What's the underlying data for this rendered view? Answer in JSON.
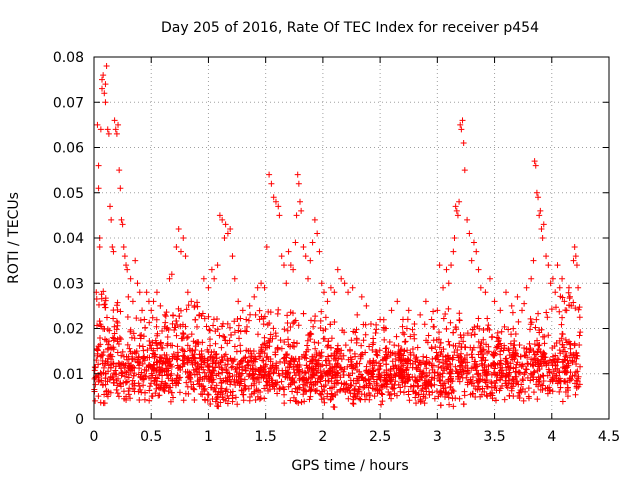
{
  "chart_data": {
    "type": "scatter",
    "title": "Day 205 of 2016, Rate Of TEC Index for receiver p454",
    "xlabel": "GPS time / hours",
    "ylabel": "ROTI / TECUs",
    "xlim": [
      0,
      4.5
    ],
    "ylim": [
      0,
      0.08
    ],
    "x_ticks": [
      0,
      0.5,
      1,
      1.5,
      2,
      2.5,
      3,
      3.5,
      4,
      4.5
    ],
    "x_tick_labels": [
      "0",
      "0.5",
      "1",
      "1.5",
      "2",
      "2.5",
      "3",
      "3.5",
      "4",
      "4.5"
    ],
    "y_ticks": [
      0,
      0.01,
      0.02,
      0.03,
      0.04,
      0.05,
      0.06,
      0.07,
      0.08
    ],
    "y_tick_labels": [
      "0",
      "0.01",
      "0.02",
      "0.03",
      "0.04",
      "0.05",
      "0.06",
      "0.07",
      "0.08"
    ],
    "grid": true,
    "marker": "+",
    "series": [
      {
        "name": "ROTI",
        "color": "#ff0000",
        "points": [
          [
            0.01,
            0.004
          ],
          [
            0.02,
            0.013
          ],
          [
            0.02,
            0.028
          ],
          [
            0.03,
            0.065
          ],
          [
            0.04,
            0.056
          ],
          [
            0.04,
            0.051
          ],
          [
            0.05,
            0.04
          ],
          [
            0.05,
            0.038
          ],
          [
            0.06,
            0.064
          ],
          [
            0.07,
            0.075
          ],
          [
            0.07,
            0.073
          ],
          [
            0.08,
            0.076
          ],
          [
            0.09,
            0.072
          ],
          [
            0.1,
            0.074
          ],
          [
            0.1,
            0.07
          ],
          [
            0.11,
            0.078
          ],
          [
            0.12,
            0.064
          ],
          [
            0.13,
            0.063
          ],
          [
            0.14,
            0.047
          ],
          [
            0.15,
            0.044
          ],
          [
            0.16,
            0.038
          ],
          [
            0.17,
            0.037
          ],
          [
            0.18,
            0.066
          ],
          [
            0.19,
            0.064
          ],
          [
            0.2,
            0.063
          ],
          [
            0.21,
            0.065
          ],
          [
            0.22,
            0.055
          ],
          [
            0.23,
            0.051
          ],
          [
            0.24,
            0.044
          ],
          [
            0.25,
            0.043
          ],
          [
            0.26,
            0.038
          ],
          [
            0.27,
            0.036
          ],
          [
            0.28,
            0.034
          ],
          [
            0.29,
            0.033
          ],
          [
            0.3,
            0.027
          ],
          [
            0.32,
            0.031
          ],
          [
            0.34,
            0.026
          ],
          [
            0.36,
            0.035
          ],
          [
            0.38,
            0.03
          ],
          [
            0.4,
            0.028
          ],
          [
            0.42,
            0.024
          ],
          [
            0.44,
            0.022
          ],
          [
            0.46,
            0.028
          ],
          [
            0.48,
            0.026
          ],
          [
            0.5,
            0.024
          ],
          [
            0.52,
            0.026
          ],
          [
            0.55,
            0.028
          ],
          [
            0.58,
            0.025
          ],
          [
            0.62,
            0.023
          ],
          [
            0.66,
            0.031
          ],
          [
            0.68,
            0.032
          ],
          [
            0.72,
            0.038
          ],
          [
            0.74,
            0.042
          ],
          [
            0.76,
            0.037
          ],
          [
            0.78,
            0.04
          ],
          [
            0.8,
            0.036
          ],
          [
            0.82,
            0.028
          ],
          [
            0.85,
            0.026
          ],
          [
            0.88,
            0.025
          ],
          [
            0.92,
            0.023
          ],
          [
            0.96,
            0.031
          ],
          [
            1.0,
            0.029
          ],
          [
            1.03,
            0.033
          ],
          [
            1.05,
            0.031
          ],
          [
            1.08,
            0.034
          ],
          [
            1.1,
            0.045
          ],
          [
            1.12,
            0.044
          ],
          [
            1.14,
            0.04
          ],
          [
            1.15,
            0.043
          ],
          [
            1.17,
            0.041
          ],
          [
            1.19,
            0.042
          ],
          [
            1.21,
            0.036
          ],
          [
            1.23,
            0.031
          ],
          [
            1.26,
            0.026
          ],
          [
            1.3,
            0.024
          ],
          [
            1.33,
            0.022
          ],
          [
            1.36,
            0.025
          ],
          [
            1.4,
            0.027
          ],
          [
            1.43,
            0.029
          ],
          [
            1.46,
            0.03
          ],
          [
            1.49,
            0.029
          ],
          [
            1.51,
            0.038
          ],
          [
            1.53,
            0.054
          ],
          [
            1.55,
            0.052
          ],
          [
            1.57,
            0.049
          ],
          [
            1.59,
            0.048
          ],
          [
            1.61,
            0.047
          ],
          [
            1.62,
            0.045
          ],
          [
            1.64,
            0.036
          ],
          [
            1.66,
            0.034
          ],
          [
            1.68,
            0.03
          ],
          [
            1.7,
            0.037
          ],
          [
            1.72,
            0.034
          ],
          [
            1.74,
            0.033
          ],
          [
            1.76,
            0.039
          ],
          [
            1.77,
            0.045
          ],
          [
            1.78,
            0.054
          ],
          [
            1.79,
            0.052
          ],
          [
            1.8,
            0.048
          ],
          [
            1.81,
            0.046
          ],
          [
            1.83,
            0.038
          ],
          [
            1.85,
            0.036
          ],
          [
            1.87,
            0.031
          ],
          [
            1.89,
            0.035
          ],
          [
            1.91,
            0.039
          ],
          [
            1.93,
            0.044
          ],
          [
            1.95,
            0.041
          ],
          [
            1.97,
            0.037
          ],
          [
            1.99,
            0.03
          ],
          [
            2.01,
            0.028
          ],
          [
            2.04,
            0.026
          ],
          [
            2.07,
            0.029
          ],
          [
            2.1,
            0.028
          ],
          [
            2.13,
            0.033
          ],
          [
            2.16,
            0.031
          ],
          [
            2.19,
            0.03
          ],
          [
            2.22,
            0.028
          ],
          [
            2.26,
            0.029
          ],
          [
            2.3,
            0.023
          ],
          [
            2.34,
            0.027
          ],
          [
            2.38,
            0.025
          ],
          [
            2.42,
            0.021
          ],
          [
            2.46,
            0.019
          ],
          [
            2.5,
            0.022
          ],
          [
            2.55,
            0.02
          ],
          [
            2.6,
            0.024
          ],
          [
            2.65,
            0.026
          ],
          [
            2.7,
            0.022
          ],
          [
            2.75,
            0.024
          ],
          [
            2.8,
            0.021
          ],
          [
            2.85,
            0.023
          ],
          [
            2.9,
            0.026
          ],
          [
            2.95,
            0.022
          ],
          [
            3.0,
            0.024
          ],
          [
            3.02,
            0.034
          ],
          [
            3.05,
            0.029
          ],
          [
            3.08,
            0.033
          ],
          [
            3.1,
            0.03
          ],
          [
            3.12,
            0.034
          ],
          [
            3.14,
            0.037
          ],
          [
            3.15,
            0.04
          ],
          [
            3.16,
            0.047
          ],
          [
            3.17,
            0.046
          ],
          [
            3.18,
            0.045
          ],
          [
            3.19,
            0.048
          ],
          [
            3.2,
            0.065
          ],
          [
            3.21,
            0.064
          ],
          [
            3.22,
            0.066
          ],
          [
            3.23,
            0.061
          ],
          [
            3.24,
            0.055
          ],
          [
            3.26,
            0.044
          ],
          [
            3.28,
            0.041
          ],
          [
            3.3,
            0.035
          ],
          [
            3.32,
            0.039
          ],
          [
            3.34,
            0.037
          ],
          [
            3.36,
            0.033
          ],
          [
            3.38,
            0.029
          ],
          [
            3.42,
            0.028
          ],
          [
            3.46,
            0.031
          ],
          [
            3.5,
            0.026
          ],
          [
            3.55,
            0.024
          ],
          [
            3.6,
            0.028
          ],
          [
            3.65,
            0.025
          ],
          [
            3.7,
            0.027
          ],
          [
            3.74,
            0.024
          ],
          [
            3.78,
            0.029
          ],
          [
            3.82,
            0.031
          ],
          [
            3.84,
            0.035
          ],
          [
            3.85,
            0.057
          ],
          [
            3.86,
            0.056
          ],
          [
            3.87,
            0.05
          ],
          [
            3.88,
            0.049
          ],
          [
            3.89,
            0.045
          ],
          [
            3.9,
            0.046
          ],
          [
            3.91,
            0.042
          ],
          [
            3.92,
            0.04
          ],
          [
            3.93,
            0.043
          ],
          [
            3.95,
            0.036
          ],
          [
            3.97,
            0.034
          ],
          [
            3.99,
            0.03
          ],
          [
            4.01,
            0.031
          ],
          [
            4.03,
            0.028
          ],
          [
            4.05,
            0.034
          ],
          [
            4.07,
            0.029
          ],
          [
            4.09,
            0.031
          ],
          [
            4.11,
            0.026
          ],
          [
            4.13,
            0.024
          ],
          [
            4.15,
            0.029
          ],
          [
            4.17,
            0.025
          ],
          [
            4.19,
            0.035
          ],
          [
            4.2,
            0.038
          ],
          [
            4.21,
            0.036
          ],
          [
            4.22,
            0.034
          ],
          [
            4.23,
            0.029
          ]
        ],
        "band_upper": [
          0.03,
          0.028,
          0.026,
          0.024,
          0.022,
          0.022,
          0.024,
          0.026,
          0.028,
          0.026,
          0.024,
          0.022,
          0.021,
          0.023,
          0.024,
          0.025,
          0.026,
          0.026,
          0.025,
          0.024,
          0.025,
          0.023,
          0.022,
          0.021,
          0.021,
          0.022,
          0.022,
          0.023,
          0.022,
          0.021,
          0.024,
          0.026,
          0.024,
          0.023,
          0.024,
          0.022,
          0.021,
          0.024,
          0.026,
          0.025,
          0.024,
          0.027,
          0.028,
          0.026
        ],
        "band_lower": [
          0.005,
          0.005,
          0.006,
          0.006,
          0.006,
          0.005,
          0.005,
          0.005,
          0.006,
          0.006,
          0.005,
          0.004,
          0.004,
          0.005,
          0.006,
          0.006,
          0.005,
          0.005,
          0.005,
          0.006,
          0.005,
          0.004,
          0.003,
          0.003,
          0.004,
          0.004,
          0.005,
          0.005,
          0.005,
          0.005,
          0.005,
          0.004,
          0.004,
          0.005,
          0.005,
          0.004,
          0.004,
          0.005,
          0.005,
          0.006,
          0.005,
          0.005,
          0.006,
          0.005
        ],
        "band_center": [
          0.012,
          0.011,
          0.011,
          0.01,
          0.01,
          0.011,
          0.011,
          0.012,
          0.012,
          0.011,
          0.01,
          0.009,
          0.009,
          0.01,
          0.01,
          0.011,
          0.011,
          0.011,
          0.01,
          0.01,
          0.01,
          0.01,
          0.009,
          0.009,
          0.009,
          0.01,
          0.01,
          0.011,
          0.011,
          0.01,
          0.01,
          0.01,
          0.01,
          0.01,
          0.011,
          0.01,
          0.01,
          0.011,
          0.011,
          0.012,
          0.011,
          0.011,
          0.012,
          0.011
        ],
        "band_x_range": [
          0.0,
          4.25
        ]
      }
    ]
  }
}
